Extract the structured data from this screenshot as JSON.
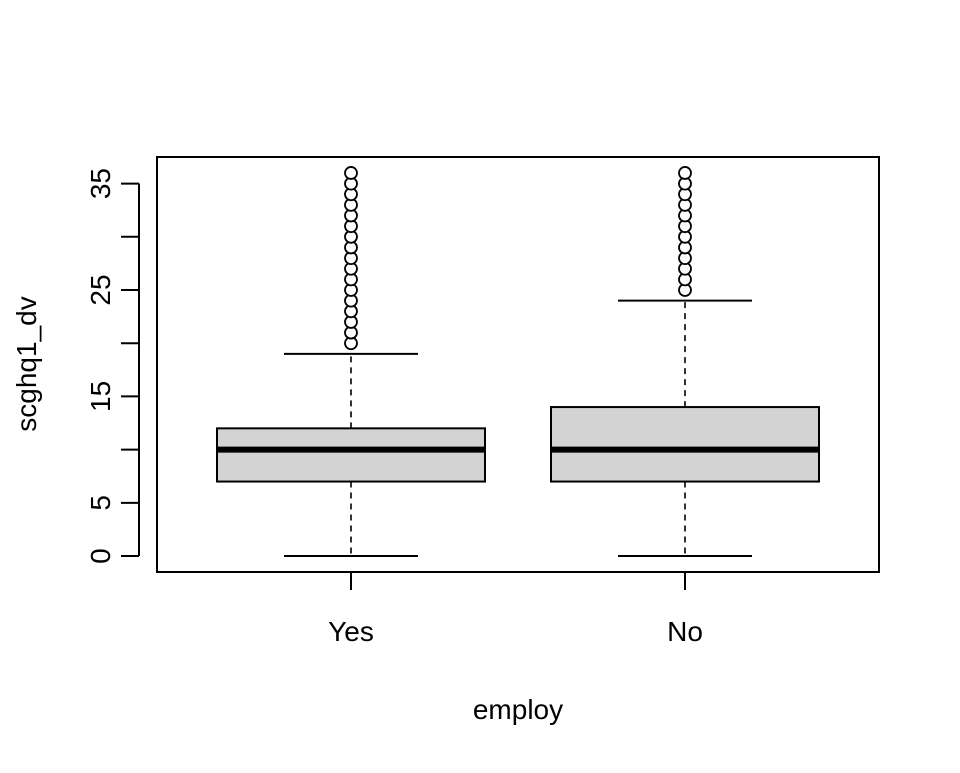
{
  "chart_data": {
    "type": "boxplot",
    "xlabel": "employ",
    "ylabel": "scghq1_dv",
    "categories": [
      "Yes",
      "No"
    ],
    "ylim": [
      -1.5,
      37.5
    ],
    "yticks": [
      0,
      5,
      10,
      15,
      20,
      25,
      30,
      35
    ],
    "ytick_labels": [
      "0",
      "5",
      "",
      "15",
      "",
      "25",
      "",
      "35"
    ],
    "box_fill": "#d3d3d3",
    "boxes": [
      {
        "category": "Yes",
        "min": 0,
        "q1": 7,
        "median": 10,
        "q3": 12,
        "max": 19,
        "outliers": [
          20,
          21,
          22,
          23,
          24,
          25,
          26,
          27,
          28,
          29,
          30,
          31,
          32,
          33,
          34,
          35,
          36
        ]
      },
      {
        "category": "No",
        "min": 0,
        "q1": 7,
        "median": 10,
        "q3": 14,
        "max": 24,
        "outliers": [
          25,
          26,
          27,
          28,
          29,
          30,
          31,
          32,
          33,
          34,
          35,
          36
        ]
      }
    ]
  }
}
